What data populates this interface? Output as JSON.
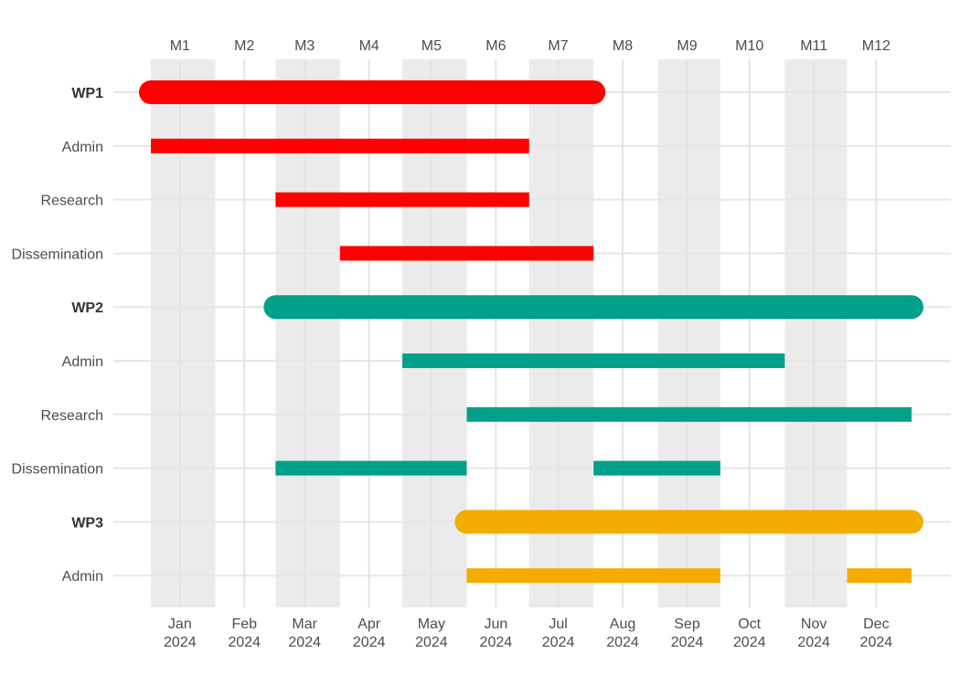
{
  "chart_data": {
    "type": "gantt",
    "top_axis_labels": [
      "M1",
      "M2",
      "M3",
      "M4",
      "M5",
      "M6",
      "M7",
      "M8",
      "M9",
      "M10",
      "M11",
      "M12"
    ],
    "bottom_axis_labels": [
      {
        "month": "Jan",
        "year": "2024"
      },
      {
        "month": "Feb",
        "year": "2024"
      },
      {
        "month": "Mar",
        "year": "2024"
      },
      {
        "month": "Apr",
        "year": "2024"
      },
      {
        "month": "May",
        "year": "2024"
      },
      {
        "month": "Jun",
        "year": "2024"
      },
      {
        "month": "Jul",
        "year": "2024"
      },
      {
        "month": "Aug",
        "year": "2024"
      },
      {
        "month": "Sep",
        "year": "2024"
      },
      {
        "month": "Oct",
        "year": "2024"
      },
      {
        "month": "Nov",
        "year": "2024"
      },
      {
        "month": "Dec",
        "year": "2024"
      }
    ],
    "x_range": [
      "2024-01-01",
      "2024-12-31"
    ],
    "shaded_months": [
      "Jan",
      "Mar",
      "May",
      "Jul",
      "Sep",
      "Nov"
    ],
    "grid": true,
    "rows": [
      {
        "label": "WP1",
        "is_wp": true,
        "color": "#ff0000",
        "segments": [
          [
            "2024-01-01",
            "2024-07-31"
          ]
        ]
      },
      {
        "label": "Admin",
        "is_wp": false,
        "color": "#ff0000",
        "segments": [
          [
            "2024-01-01",
            "2024-06-30"
          ]
        ]
      },
      {
        "label": "Research",
        "is_wp": false,
        "color": "#ff0000",
        "segments": [
          [
            "2024-03-01",
            "2024-06-30"
          ]
        ]
      },
      {
        "label": "Dissemination",
        "is_wp": false,
        "color": "#ff0000",
        "segments": [
          [
            "2024-04-01",
            "2024-07-31"
          ]
        ]
      },
      {
        "label": "WP2",
        "is_wp": true,
        "color": "#00a08a",
        "segments": [
          [
            "2024-03-01",
            "2024-12-31"
          ]
        ]
      },
      {
        "label": "Admin",
        "is_wp": false,
        "color": "#00a08a",
        "segments": [
          [
            "2024-05-01",
            "2024-10-31"
          ]
        ]
      },
      {
        "label": "Research",
        "is_wp": false,
        "color": "#00a08a",
        "segments": [
          [
            "2024-06-01",
            "2024-12-31"
          ]
        ]
      },
      {
        "label": "Dissemination",
        "is_wp": false,
        "color": "#00a08a",
        "segments": [
          [
            "2024-03-01",
            "2024-05-31"
          ],
          [
            "2024-08-01",
            "2024-09-30"
          ]
        ]
      },
      {
        "label": "WP3",
        "is_wp": true,
        "color": "#f2ad00",
        "segments": [
          [
            "2024-06-01",
            "2024-12-31"
          ]
        ]
      },
      {
        "label": "Admin",
        "is_wp": false,
        "color": "#f2ad00",
        "segments": [
          [
            "2024-06-01",
            "2024-09-30"
          ],
          [
            "2024-12-01",
            "2024-12-31"
          ]
        ]
      }
    ]
  }
}
